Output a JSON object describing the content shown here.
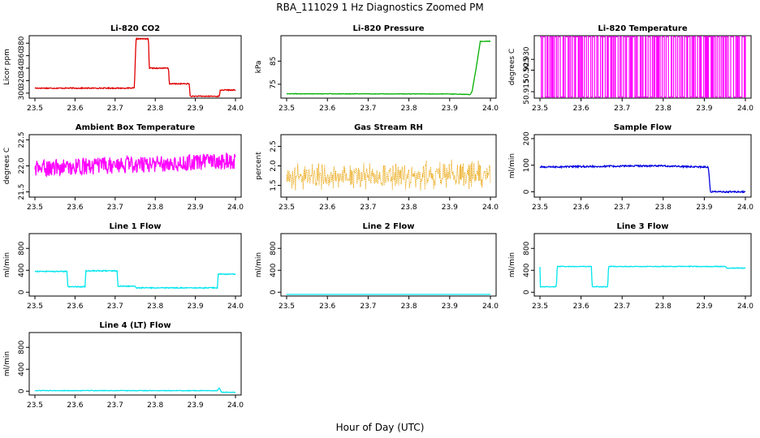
{
  "figure": {
    "title": "RBA_111029  1 Hz Diagnostics Zoomed PM",
    "xlabel": "Hour of Day (UTC)"
  },
  "chart_data": [
    {
      "type": "line",
      "title": "Li-820 CO2",
      "ylabel": "Licor ppm",
      "color": "#e00000",
      "xlim": [
        23.5,
        24.0
      ],
      "xticks": [
        "23.5",
        "23.6",
        "23.7",
        "23.8",
        "23.9",
        "24.0"
      ],
      "ylim": [
        292,
        392
      ],
      "yticks": [
        300,
        320,
        340,
        360,
        380
      ],
      "noise": 0.8,
      "segments": [
        [
          23.5,
          308
        ],
        [
          23.748,
          308
        ],
        [
          23.752,
          387
        ],
        [
          23.783,
          387
        ],
        [
          23.785,
          340
        ],
        [
          23.833,
          340
        ],
        [
          23.835,
          315
        ],
        [
          23.885,
          315
        ],
        [
          23.887,
          295
        ],
        [
          23.96,
          295
        ],
        [
          23.962,
          305
        ],
        [
          24.0,
          305
        ]
      ]
    },
    {
      "type": "line",
      "title": "Li-820 Pressure",
      "ylabel": "kPa",
      "color": "#00b000",
      "xlim": [
        23.5,
        24.0
      ],
      "xticks": [
        "23.5",
        "23.6",
        "23.7",
        "23.8",
        "23.9",
        "24.0"
      ],
      "ylim": [
        69,
        96
      ],
      "yticks": [
        75,
        85
      ],
      "noise": 0.1,
      "segments": [
        [
          23.5,
          70.9
        ],
        [
          23.9,
          70.8
        ],
        [
          23.95,
          70.6
        ],
        [
          23.955,
          72
        ],
        [
          23.965,
          82
        ],
        [
          23.975,
          93.5
        ],
        [
          24.0,
          93.6
        ]
      ]
    },
    {
      "type": "step-toggle",
      "title": "Li-820 Temperature",
      "ylabel": "degrees C",
      "color": "#ff00ff",
      "xlim": [
        23.5,
        24.0
      ],
      "xticks": [
        "23.5",
        "23.6",
        "23.7",
        "23.8",
        "23.9",
        "24.0"
      ],
      "ylim": [
        50.912,
        50.941
      ],
      "yticks": [
        "50.915",
        "50.925",
        "50.930"
      ],
      "levels": [
        50.9125,
        50.9405
      ]
    },
    {
      "type": "line",
      "title": "Ambient Box Temperature",
      "ylabel": "degrees C",
      "color": "#ff00ff",
      "xlim": [
        23.5,
        24.0
      ],
      "xticks": [
        "23.5",
        "23.6",
        "23.7",
        "23.8",
        "23.9",
        "24.0"
      ],
      "ylim": [
        21.4,
        22.6
      ],
      "yticks": [
        "21.5",
        "22.0",
        "22.5"
      ],
      "noise": 0.16,
      "segments": [
        [
          23.5,
          21.95
        ],
        [
          24.0,
          22.1
        ]
      ]
    },
    {
      "type": "scatter",
      "title": "Gas Stream RH",
      "ylabel": "percent",
      "color": "#e8a000",
      "xlim": [
        23.5,
        24.0
      ],
      "xticks": [
        "23.5",
        "23.6",
        "23.7",
        "23.8",
        "23.9",
        "24.0"
      ],
      "ylim": [
        1.2,
        2.8
      ],
      "yticks": [
        "1.5",
        "2.0",
        "2.5"
      ],
      "noise": 0.28,
      "segments": [
        [
          23.5,
          1.75
        ],
        [
          24.0,
          1.75
        ]
      ]
    },
    {
      "type": "line",
      "title": "Sample Flow",
      "ylabel": "ml/min",
      "color": "#0000e0",
      "xlim": [
        23.5,
        24.0
      ],
      "xticks": [
        "23.5",
        "23.6",
        "23.7",
        "23.8",
        "23.9",
        "24.0"
      ],
      "ylim": [
        -20,
        215
      ],
      "yticks": [
        0,
        100,
        200
      ],
      "noise": 3,
      "segments": [
        [
          23.5,
          93
        ],
        [
          23.78,
          98
        ],
        [
          23.91,
          93
        ],
        [
          23.915,
          0
        ],
        [
          24.0,
          0
        ]
      ]
    },
    {
      "type": "line",
      "title": "Line 1 Flow",
      "ylabel": "ml/min",
      "color": "#00e5ee",
      "xlim": [
        23.5,
        24.0
      ],
      "xticks": [
        "23.5",
        "23.6",
        "23.7",
        "23.8",
        "23.9",
        "24.0"
      ],
      "ylim": [
        -70,
        1070
      ],
      "yticks": [
        0,
        400,
        800
      ],
      "noise": 8,
      "segments": [
        [
          23.5,
          380
        ],
        [
          23.58,
          380
        ],
        [
          23.582,
          100
        ],
        [
          23.625,
          100
        ],
        [
          23.627,
          390
        ],
        [
          23.705,
          390
        ],
        [
          23.707,
          110
        ],
        [
          23.75,
          110
        ],
        [
          23.752,
          80
        ],
        [
          23.955,
          80
        ],
        [
          23.957,
          330
        ],
        [
          24.0,
          330
        ]
      ]
    },
    {
      "type": "line",
      "title": "Line 2 Flow",
      "ylabel": "ml/min",
      "color": "#00e5ee",
      "xlim": [
        23.5,
        24.0
      ],
      "xticks": [
        "23.5",
        "23.6",
        "23.7",
        "23.8",
        "23.9",
        "24.0"
      ],
      "ylim": [
        -70,
        1070
      ],
      "yticks": [
        0,
        400,
        800
      ],
      "noise": 0,
      "segments": [
        [
          23.5,
          -40
        ],
        [
          24.0,
          -40
        ]
      ]
    },
    {
      "type": "line",
      "title": "Line 3 Flow",
      "ylabel": "ml/min",
      "color": "#00e5ee",
      "xlim": [
        23.5,
        24.0
      ],
      "xticks": [
        "23.5",
        "23.6",
        "23.7",
        "23.8",
        "23.9",
        "24.0"
      ],
      "ylim": [
        -70,
        1070
      ],
      "yticks": [
        0,
        400,
        800
      ],
      "noise": 6,
      "segments": [
        [
          23.5,
          460
        ],
        [
          23.501,
          100
        ],
        [
          23.54,
          100
        ],
        [
          23.542,
          470
        ],
        [
          23.625,
          470
        ],
        [
          23.627,
          100
        ],
        [
          23.665,
          100
        ],
        [
          23.667,
          470
        ],
        [
          23.95,
          470
        ],
        [
          23.955,
          440
        ],
        [
          24.0,
          440
        ]
      ]
    },
    {
      "type": "line",
      "title": "Line 4 (LT) Flow",
      "ylabel": "ml/min",
      "color": "#00e5ee",
      "xlim": [
        23.5,
        24.0
      ],
      "xticks": [
        "23.5",
        "23.6",
        "23.7",
        "23.8",
        "23.9",
        "24.0"
      ],
      "ylim": [
        -70,
        1070
      ],
      "yticks": [
        0,
        400,
        800
      ],
      "noise": 5,
      "segments": [
        [
          23.5,
          10
        ],
        [
          23.955,
          10
        ],
        [
          23.96,
          60
        ],
        [
          23.965,
          -20
        ],
        [
          24.0,
          -20
        ]
      ]
    }
  ]
}
